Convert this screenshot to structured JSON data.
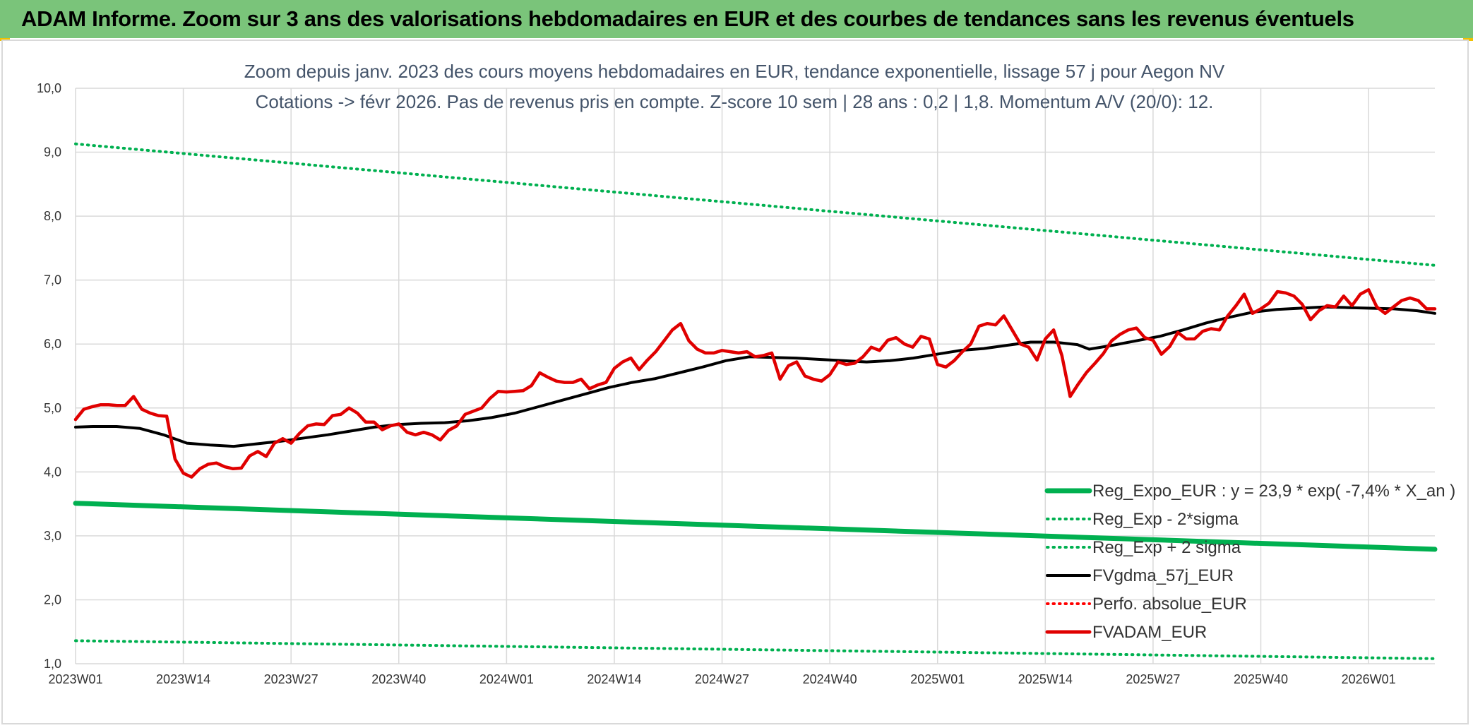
{
  "header": {
    "title": "ADAM Informe. Zoom sur 3 ans des valorisations hebdomadaires en EUR et des courbes de tendances sans les revenus éventuels"
  },
  "chart_data": {
    "type": "line",
    "title": "",
    "subtitle_lines": [
      "Zoom depuis janv. 2023 des cours moyens hebdomadaires en EUR, tendance exponentielle, lissage 57 j pour Aegon NV",
      "Cotations -> févr 2026. Pas de revenus pris en compte. Z-score 10 sem | 28 ans : 0,2 | 1,8. Momentum A/V (20/0): 12."
    ],
    "xlabel": "",
    "ylabel": "",
    "ylim": [
      1.0,
      10.0
    ],
    "y_ticks": [
      "1,0",
      "2,0",
      "3,0",
      "4,0",
      "5,0",
      "6,0",
      "7,0",
      "8,0",
      "9,0",
      "10,0"
    ],
    "x_ticks": [
      "2023W01",
      "2023W14",
      "2023W27",
      "2023W40",
      "2024W01",
      "2024W14",
      "2024W27",
      "2024W40",
      "2025W01",
      "2025W14",
      "2025W27",
      "2025W40",
      "2026W01"
    ],
    "x_week_range": [
      1,
      165
    ],
    "grid": true,
    "legend_position": "bottom-right",
    "series": [
      {
        "name": "Reg_Expo_EUR : y = 23,9 * exp( -7,4% *  X_an )",
        "color": "#00b050",
        "style": "solid-thick",
        "points": [
          [
            1,
            3.51
          ],
          [
            165,
            2.79
          ]
        ]
      },
      {
        "name": "Reg_Exp - 2*sigma",
        "color": "#00b050",
        "style": "dotted",
        "points": [
          [
            1,
            1.36
          ],
          [
            165,
            1.08
          ]
        ]
      },
      {
        "name": "Reg_Exp + 2 sigma",
        "color": "#00b050",
        "style": "dotted",
        "points": [
          [
            1,
            9.13
          ],
          [
            165,
            7.23
          ]
        ]
      },
      {
        "name": "FVgdma_57j_EUR",
        "color": "#000000",
        "style": "solid",
        "points": [
          [
            1,
            4.7
          ],
          [
            4,
            4.71
          ],
          [
            8,
            4.71
          ],
          [
            12,
            4.68
          ],
          [
            16,
            4.58
          ],
          [
            20,
            4.45
          ],
          [
            24,
            4.42
          ],
          [
            28,
            4.4
          ],
          [
            32,
            4.44
          ],
          [
            36,
            4.48
          ],
          [
            40,
            4.53
          ],
          [
            44,
            4.58
          ],
          [
            48,
            4.64
          ],
          [
            52,
            4.7
          ],
          [
            56,
            4.74
          ],
          [
            60,
            4.76
          ],
          [
            64,
            4.77
          ],
          [
            68,
            4.8
          ],
          [
            72,
            4.85
          ],
          [
            76,
            4.92
          ],
          [
            80,
            5.02
          ],
          [
            84,
            5.12
          ],
          [
            88,
            5.22
          ],
          [
            92,
            5.32
          ],
          [
            96,
            5.4
          ],
          [
            100,
            5.46
          ],
          [
            104,
            5.55
          ],
          [
            108,
            5.64
          ],
          [
            112,
            5.74
          ],
          [
            116,
            5.8
          ],
          [
            120,
            5.79
          ],
          [
            124,
            5.78
          ],
          [
            128,
            5.76
          ],
          [
            132,
            5.74
          ],
          [
            136,
            5.72
          ],
          [
            140,
            5.74
          ],
          [
            144,
            5.78
          ],
          [
            148,
            5.84
          ],
          [
            152,
            5.9
          ],
          [
            156,
            5.93
          ],
          [
            160,
            5.98
          ],
          [
            164,
            6.03
          ],
          [
            168,
            6.03
          ],
          [
            172,
            5.99
          ],
          [
            174,
            5.92
          ],
          [
            178,
            5.98
          ],
          [
            182,
            6.05
          ],
          [
            186,
            6.12
          ],
          [
            190,
            6.22
          ],
          [
            194,
            6.33
          ],
          [
            198,
            6.42
          ],
          [
            202,
            6.5
          ],
          [
            206,
            6.54
          ],
          [
            210,
            6.56
          ],
          [
            214,
            6.58
          ],
          [
            218,
            6.57
          ],
          [
            222,
            6.56
          ],
          [
            226,
            6.55
          ],
          [
            230,
            6.52
          ],
          [
            233,
            6.48
          ]
        ]
      },
      {
        "name": "Perfo. absolue_EUR",
        "color": "#ff0000",
        "style": "dotted",
        "points": []
      },
      {
        "name": "FVADAM_EUR",
        "color": "#e00000",
        "style": "solid-thick",
        "points": [
          [
            1,
            4.82
          ],
          [
            2,
            4.98
          ],
          [
            3,
            5.02
          ],
          [
            4,
            5.05
          ],
          [
            5,
            5.05
          ],
          [
            6,
            5.04
          ],
          [
            7,
            5.04
          ],
          [
            8,
            5.18
          ],
          [
            9,
            4.98
          ],
          [
            10,
            4.92
          ],
          [
            11,
            4.88
          ],
          [
            12,
            4.87
          ],
          [
            13,
            4.2
          ],
          [
            14,
            3.98
          ],
          [
            15,
            3.92
          ],
          [
            16,
            4.05
          ],
          [
            17,
            4.12
          ],
          [
            18,
            4.14
          ],
          [
            19,
            4.08
          ],
          [
            20,
            4.05
          ],
          [
            21,
            4.06
          ],
          [
            22,
            4.25
          ],
          [
            23,
            4.32
          ],
          [
            24,
            4.24
          ],
          [
            25,
            4.45
          ],
          [
            26,
            4.52
          ],
          [
            27,
            4.45
          ],
          [
            28,
            4.6
          ],
          [
            29,
            4.72
          ],
          [
            30,
            4.75
          ],
          [
            31,
            4.74
          ],
          [
            32,
            4.88
          ],
          [
            33,
            4.9
          ],
          [
            34,
            5.0
          ],
          [
            35,
            4.92
          ],
          [
            36,
            4.78
          ],
          [
            37,
            4.78
          ],
          [
            38,
            4.66
          ],
          [
            39,
            4.72
          ],
          [
            40,
            4.75
          ],
          [
            41,
            4.62
          ],
          [
            42,
            4.58
          ],
          [
            43,
            4.62
          ],
          [
            44,
            4.58
          ],
          [
            45,
            4.5
          ],
          [
            46,
            4.65
          ],
          [
            47,
            4.72
          ],
          [
            48,
            4.9
          ],
          [
            49,
            4.95
          ],
          [
            50,
            5.0
          ],
          [
            51,
            5.15
          ],
          [
            52,
            5.26
          ],
          [
            53,
            5.25
          ],
          [
            54,
            5.26
          ],
          [
            55,
            5.27
          ],
          [
            56,
            5.35
          ],
          [
            57,
            5.55
          ],
          [
            58,
            5.48
          ],
          [
            59,
            5.42
          ],
          [
            60,
            5.4
          ],
          [
            61,
            5.4
          ],
          [
            62,
            5.45
          ],
          [
            63,
            5.3
          ],
          [
            64,
            5.36
          ],
          [
            65,
            5.4
          ],
          [
            66,
            5.62
          ],
          [
            67,
            5.72
          ],
          [
            68,
            5.78
          ],
          [
            69,
            5.6
          ],
          [
            70,
            5.75
          ],
          [
            71,
            5.88
          ],
          [
            72,
            6.05
          ],
          [
            73,
            6.22
          ],
          [
            74,
            6.32
          ],
          [
            75,
            6.05
          ],
          [
            76,
            5.92
          ],
          [
            77,
            5.86
          ],
          [
            78,
            5.86
          ],
          [
            79,
            5.9
          ],
          [
            80,
            5.88
          ],
          [
            81,
            5.86
          ],
          [
            82,
            5.88
          ],
          [
            83,
            5.8
          ],
          [
            84,
            5.82
          ],
          [
            85,
            5.86
          ],
          [
            86,
            5.45
          ],
          [
            87,
            5.66
          ],
          [
            88,
            5.72
          ],
          [
            89,
            5.5
          ],
          [
            90,
            5.45
          ],
          [
            91,
            5.42
          ],
          [
            92,
            5.52
          ],
          [
            93,
            5.72
          ],
          [
            94,
            5.68
          ],
          [
            95,
            5.7
          ],
          [
            96,
            5.8
          ],
          [
            97,
            5.95
          ],
          [
            98,
            5.9
          ],
          [
            99,
            6.06
          ],
          [
            100,
            6.1
          ],
          [
            101,
            6.0
          ],
          [
            102,
            5.95
          ],
          [
            103,
            6.12
          ],
          [
            104,
            6.08
          ],
          [
            105,
            5.68
          ],
          [
            106,
            5.64
          ],
          [
            107,
            5.74
          ],
          [
            108,
            5.88
          ],
          [
            109,
            6.0
          ],
          [
            110,
            6.28
          ],
          [
            111,
            6.32
          ],
          [
            112,
            6.3
          ],
          [
            113,
            6.44
          ],
          [
            114,
            6.22
          ],
          [
            115,
            6.0
          ],
          [
            116,
            5.95
          ],
          [
            117,
            5.75
          ],
          [
            118,
            6.08
          ],
          [
            119,
            6.22
          ],
          [
            120,
            5.82
          ],
          [
            121,
            5.18
          ],
          [
            122,
            5.38
          ],
          [
            123,
            5.56
          ],
          [
            124,
            5.7
          ],
          [
            125,
            5.85
          ],
          [
            126,
            6.05
          ],
          [
            127,
            6.15
          ],
          [
            128,
            6.22
          ],
          [
            129,
            6.25
          ],
          [
            130,
            6.1
          ],
          [
            131,
            6.06
          ],
          [
            132,
            5.84
          ],
          [
            133,
            5.96
          ],
          [
            134,
            6.18
          ],
          [
            135,
            6.08
          ],
          [
            136,
            6.08
          ],
          [
            137,
            6.2
          ],
          [
            138,
            6.24
          ],
          [
            139,
            6.22
          ],
          [
            140,
            6.44
          ],
          [
            141,
            6.6
          ],
          [
            142,
            6.78
          ],
          [
            143,
            6.48
          ],
          [
            144,
            6.55
          ],
          [
            145,
            6.64
          ],
          [
            146,
            6.82
          ],
          [
            147,
            6.8
          ],
          [
            148,
            6.75
          ],
          [
            149,
            6.62
          ],
          [
            150,
            6.38
          ],
          [
            151,
            6.52
          ],
          [
            152,
            6.6
          ],
          [
            153,
            6.58
          ],
          [
            154,
            6.75
          ],
          [
            155,
            6.6
          ],
          [
            156,
            6.78
          ],
          [
            157,
            6.85
          ],
          [
            158,
            6.58
          ],
          [
            159,
            6.48
          ],
          [
            160,
            6.58
          ],
          [
            161,
            6.68
          ],
          [
            162,
            6.72
          ],
          [
            163,
            6.68
          ],
          [
            164,
            6.55
          ],
          [
            165,
            6.55
          ]
        ]
      }
    ]
  }
}
